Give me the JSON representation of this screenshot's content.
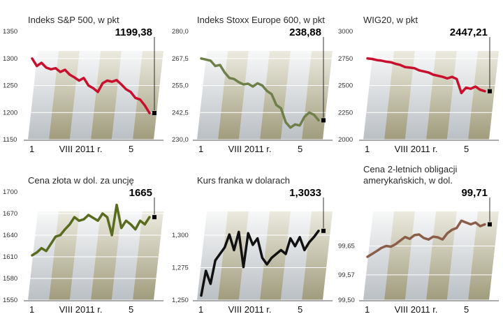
{
  "chart_data": [
    {
      "type": "line",
      "title": "Indeks S&P 500, w pkt",
      "ylim": [
        1150,
        1350
      ],
      "yticks": [
        "1350",
        "1300",
        "1250",
        "1200",
        "1150"
      ],
      "xticks": [
        "1",
        "VIII 2011 r.",
        "5"
      ],
      "last_label": "1199,38",
      "color": "#c8102e",
      "series": [
        {
          "values": [
            1300,
            1286,
            1292,
            1283,
            1280,
            1282,
            1275,
            1279,
            1270,
            1265,
            1259,
            1264,
            1250,
            1245,
            1238,
            1254,
            1259,
            1257,
            1260,
            1252,
            1243,
            1238,
            1227,
            1224,
            1213,
            1199
          ]
        }
      ]
    },
    {
      "type": "line",
      "title": "Indeks Stoxx Europe 600, w pkt",
      "ylim": [
        230,
        280
      ],
      "yticks": [
        "280,0",
        "267,5",
        "255,0",
        "242,5",
        "230,0"
      ],
      "xticks": [
        "1",
        "VIII 2011 r.",
        "5"
      ],
      "last_label": "238,88",
      "color": "#6f7f4a",
      "series": [
        {
          "values": [
            267.5,
            267.0,
            266.5,
            264.0,
            264.5,
            261.0,
            258.5,
            258.0,
            256.5,
            255.5,
            255.8,
            254.5,
            256.0,
            255.0,
            252.5,
            251.0,
            246.0,
            244.5,
            238.0,
            235.5,
            237.0,
            236.5,
            240.5,
            242.5,
            241.5,
            238.9
          ]
        }
      ]
    },
    {
      "type": "line",
      "title": "WIG20, w pkt",
      "ylim": [
        2000,
        3000
      ],
      "yticks": [
        "3000",
        "2750",
        "2500",
        "2250",
        "2000"
      ],
      "xticks": [
        "1",
        "VIII 2011 r.",
        "5"
      ],
      "last_label": "2447,21",
      "color": "#c8102e",
      "series": [
        {
          "values": [
            2750,
            2745,
            2735,
            2730,
            2720,
            2715,
            2700,
            2690,
            2670,
            2665,
            2660,
            2640,
            2630,
            2620,
            2600,
            2590,
            2580,
            2565,
            2580,
            2560,
            2430,
            2480,
            2470,
            2490,
            2460,
            2447
          ]
        }
      ]
    },
    {
      "type": "line",
      "title": "Cena złota w dol. za uncję",
      "ylim": [
        1550,
        1700
      ],
      "yticks": [
        "1700",
        "1670",
        "1640",
        "1610",
        "1580",
        "1550"
      ],
      "xticks": [
        "1",
        "VIII 2011 r.",
        "5"
      ],
      "last_label": "1665",
      "color": "#596b1e",
      "series": [
        {
          "values": [
            1612,
            1616,
            1622,
            1618,
            1628,
            1638,
            1640,
            1648,
            1655,
            1665,
            1660,
            1662,
            1668,
            1664,
            1660,
            1670,
            1665,
            1640,
            1682,
            1650,
            1660,
            1655,
            1648,
            1660,
            1655,
            1665
          ]
        }
      ]
    },
    {
      "type": "line",
      "title": "Kurs franka w dolarach",
      "ylim": [
        1.25,
        1.3333
      ],
      "yticks": [
        "1,300",
        "1,275",
        "1,250"
      ],
      "xticks": [
        "1",
        "VIII 2011 r.",
        "5"
      ],
      "last_label": "1,3033",
      "color": "#111111",
      "series": [
        {
          "values": [
            1.2535,
            1.2725,
            1.2625,
            1.2805,
            1.2855,
            1.2905,
            1.3005,
            1.2885,
            1.3025,
            1.2755,
            1.3015,
            1.2925,
            1.2975,
            1.2825,
            1.2775,
            1.2825,
            1.2855,
            1.2885,
            1.2855,
            1.2975,
            1.2915,
            1.2985,
            1.2885,
            1.2945,
            1.2985,
            1.3033
          ]
        }
      ]
    },
    {
      "type": "line",
      "title": "Cena 2-letnich obligacji\namerykańskich, w dol.",
      "ylim": [
        99.5,
        99.8
      ],
      "yticks": [
        "99,65",
        "99,57",
        "99,50"
      ],
      "xticks": [
        "1",
        "VIII 2011 r.",
        "5"
      ],
      "last_label": "99,71",
      "color": "#8b5e4a",
      "series": [
        {
          "values": [
            99.62,
            99.628,
            99.636,
            99.645,
            99.65,
            99.648,
            99.655,
            99.665,
            99.675,
            99.67,
            99.68,
            99.682,
            99.672,
            99.668,
            99.676,
            99.674,
            99.668,
            99.685,
            99.695,
            99.7,
            99.72,
            99.715,
            99.71,
            99.715,
            99.705,
            99.71
          ]
        }
      ]
    }
  ]
}
